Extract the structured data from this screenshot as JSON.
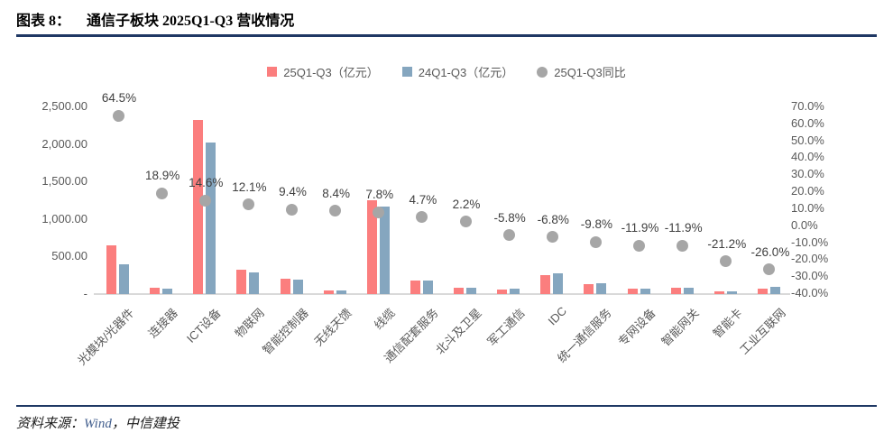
{
  "header": {
    "label": "图表 8：",
    "title": "通信子板块 2025Q1-Q3 营收情况"
  },
  "legend": [
    {
      "label": "25Q1-Q3（亿元）",
      "color": "#FB7E7E",
      "shape": "square"
    },
    {
      "label": "24Q1-Q3（亿元）",
      "color": "#85A6BF",
      "shape": "square"
    },
    {
      "label": "25Q1-Q3同比",
      "color": "#A6A6A6",
      "shape": "circle"
    }
  ],
  "chart_data": {
    "type": "bar",
    "title": "通信子板块 2025Q1-Q3 营收情况",
    "categories": [
      "光模块/光器件",
      "连接器",
      "ICT设备",
      "物联网",
      "智能控制器",
      "无线天馈",
      "线缆",
      "通信配套服务",
      "北斗及卫星",
      "军工通信",
      "IDC",
      "统一通信服务",
      "专网设备",
      "智能网关",
      "智能卡",
      "工业互联网"
    ],
    "series": [
      {
        "name": "25Q1-Q3（亿元）",
        "type": "bar",
        "axis": "left",
        "color": "#FB7E7E",
        "values": [
          650,
          88,
          2320,
          330,
          205,
          48,
          1250,
          185,
          86,
          66,
          256,
          134,
          68,
          79,
          32,
          71
        ]
      },
      {
        "name": "24Q1-Q3（亿元）",
        "type": "bar",
        "axis": "left",
        "color": "#85A6BF",
        "values": [
          395,
          74,
          2025,
          294,
          187,
          44,
          1160,
          177,
          84,
          70,
          275,
          149,
          77,
          89,
          41,
          96
        ]
      },
      {
        "name": "25Q1-Q3同比",
        "type": "scatter",
        "axis": "right",
        "color": "#A6A6A6",
        "values": [
          64.5,
          18.9,
          14.6,
          12.1,
          9.4,
          8.4,
          7.8,
          4.7,
          2.2,
          -5.8,
          -6.8,
          -9.8,
          -11.9,
          -11.9,
          -21.2,
          -26.0
        ],
        "labels": [
          "64.5%",
          "18.9%",
          "14.6%",
          "12.1%",
          "9.4%",
          "8.4%",
          "7.8%",
          "4.7%",
          "2.2%",
          "-5.8%",
          "-6.8%",
          "-9.8%",
          "-11.9%",
          "-11.9%",
          "-21.2%",
          "-26.0%"
        ]
      }
    ],
    "left_axis": {
      "ticks": [
        "2,500.00",
        "2,000.00",
        "1,500.00",
        "1,000.00",
        "500.00",
        "-"
      ],
      "tick_values": [
        2500,
        2000,
        1500,
        1000,
        500,
        0
      ],
      "min": 0,
      "max": 2500
    },
    "right_axis": {
      "ticks": [
        "70.0%",
        "60.0%",
        "50.0%",
        "40.0%",
        "30.0%",
        "20.0%",
        "10.0%",
        "0.0%",
        "-10.0%",
        "-20.0%",
        "-30.0%",
        "-40.0%"
      ],
      "tick_values": [
        70,
        60,
        50,
        40,
        30,
        20,
        10,
        0,
        -10,
        -20,
        -30,
        -40
      ],
      "min": -40,
      "max": 70
    },
    "grid": false,
    "legend_position": "top"
  },
  "footer": {
    "source_prefix": "资料来源：",
    "source_wind": "Wind",
    "source_rest": "，中信建投"
  },
  "colors": {
    "accent_navy": "#1F3864",
    "bar_red": "#FB7E7E",
    "bar_blue": "#85A6BF",
    "dot_gray": "#A6A6A6",
    "axis_text": "#595959",
    "axis_line": "#D9D9D9",
    "label_text": "#404040"
  }
}
